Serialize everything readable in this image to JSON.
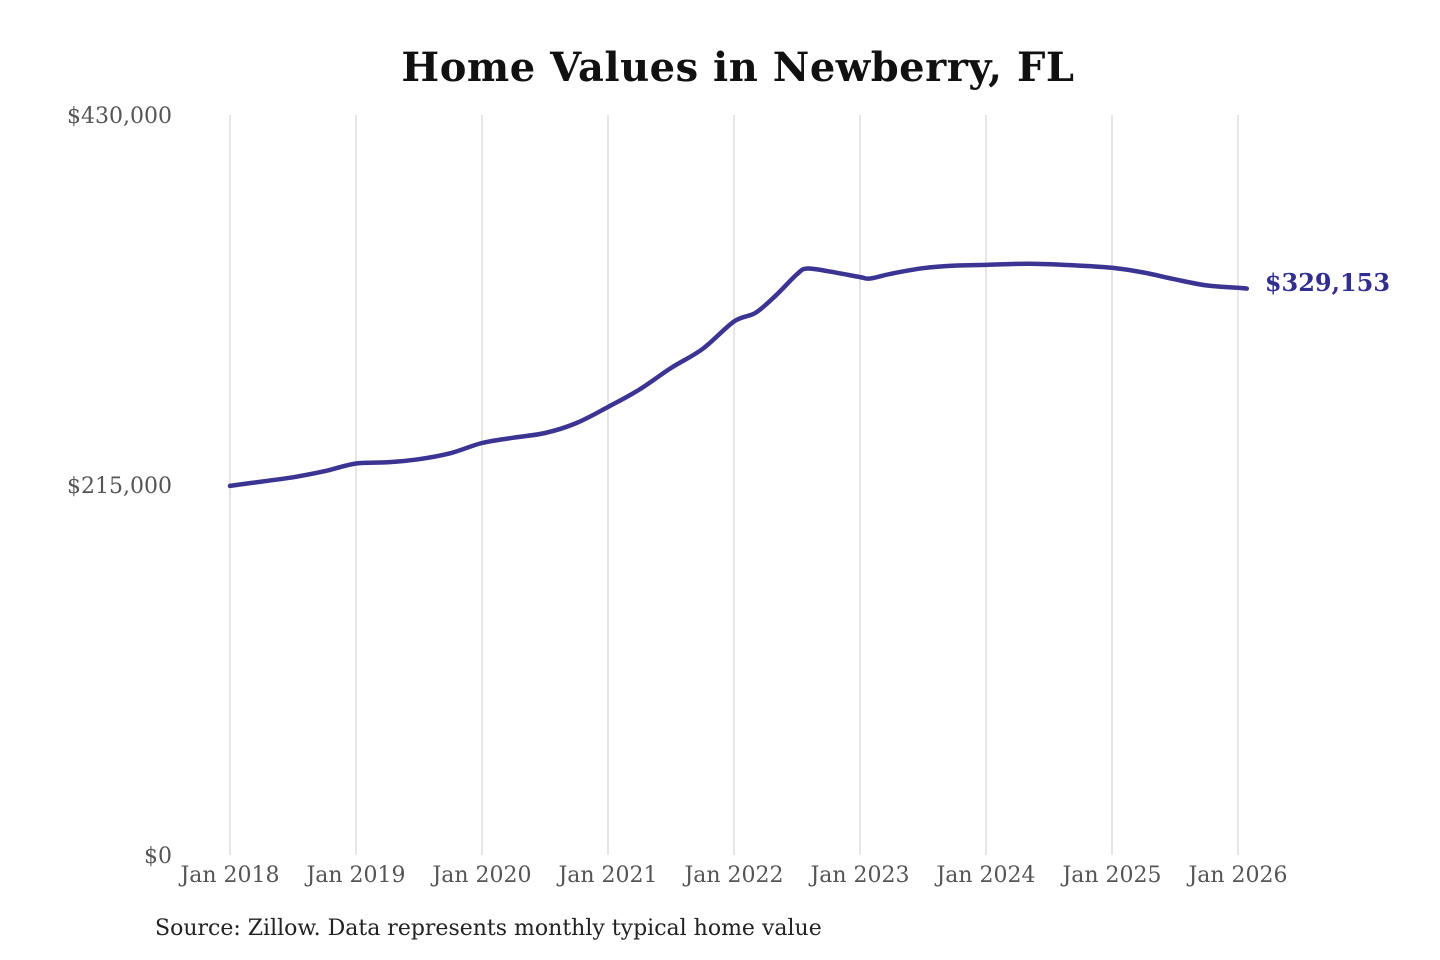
{
  "page": {
    "source_note": "Source: Zillow. Data represents monthly typical home value"
  },
  "chart_data": {
    "type": "line",
    "title": "Home Values in Newberry, FL",
    "xlabel": "",
    "ylabel": "",
    "y_max": 430000,
    "y_ticks": [
      {
        "value": 430000,
        "label": "$430,000"
      },
      {
        "value": 215000,
        "label": "$215,000"
      },
      {
        "value": 0,
        "label": "$0"
      }
    ],
    "x_ticks": [
      "Jan 2018",
      "Jan 2019",
      "Jan 2020",
      "Jan 2021",
      "Jan 2022",
      "Jan 2023",
      "Jan 2024",
      "Jan 2025",
      "Jan 2026"
    ],
    "grid": "vertical-only",
    "legend": "none",
    "end_label": "$329,153",
    "end_value": 329153,
    "series": [
      {
        "name": "Monthly typical home value",
        "points": [
          [
            0.0,
            214500
          ],
          [
            0.25,
            217000
          ],
          [
            0.5,
            219500
          ],
          [
            0.75,
            223000
          ],
          [
            1.0,
            227500
          ],
          [
            1.25,
            228200
          ],
          [
            1.5,
            230000
          ],
          [
            1.75,
            233500
          ],
          [
            2.0,
            239400
          ],
          [
            2.25,
            242500
          ],
          [
            2.5,
            245200
          ],
          [
            2.75,
            251000
          ],
          [
            3.0,
            260300
          ],
          [
            3.25,
            270500
          ],
          [
            3.5,
            283000
          ],
          [
            3.75,
            294000
          ],
          [
            4.0,
            310000
          ],
          [
            4.17,
            315000
          ],
          [
            4.33,
            325000
          ],
          [
            4.5,
            337500
          ],
          [
            4.58,
            340800
          ],
          [
            4.75,
            339200
          ],
          [
            5.0,
            335800
          ],
          [
            5.08,
            335000
          ],
          [
            5.25,
            337800
          ],
          [
            5.5,
            341000
          ],
          [
            5.75,
            342500
          ],
          [
            6.0,
            342900
          ],
          [
            6.33,
            343600
          ],
          [
            6.67,
            342800
          ],
          [
            7.0,
            341200
          ],
          [
            7.25,
            338500
          ],
          [
            7.5,
            334500
          ],
          [
            7.75,
            331000
          ],
          [
            8.0,
            329600
          ],
          [
            8.07,
            329153
          ]
        ]
      }
    ],
    "colors": {
      "line": "#3b3492",
      "end_label": "#312e90",
      "grid": "#cccccc",
      "tick_text": "#555555",
      "title": "#111111",
      "source_text": "#222222"
    }
  }
}
